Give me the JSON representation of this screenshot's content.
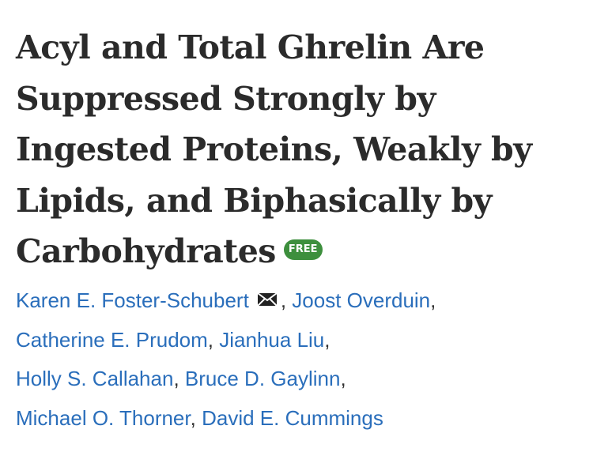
{
  "title_lines": [
    "Acyl and Total Ghrelin Are",
    "Suppressed Strongly by",
    "Ingested Proteins, Weakly by",
    "Lipids, and Biphasically by",
    "Carbohydrates"
  ],
  "badge": "FREE",
  "separator": ",",
  "author_lines": [
    [
      "Karen E. Foster-Schubert",
      "Joost Overduin"
    ],
    [
      "Catherine E. Prudom",
      "Jianhua Liu"
    ],
    [
      "Holly S. Callahan",
      "Bruce D. Gaylinn"
    ],
    [
      "Michael O. Thorner",
      "David E. Cummings"
    ]
  ]
}
